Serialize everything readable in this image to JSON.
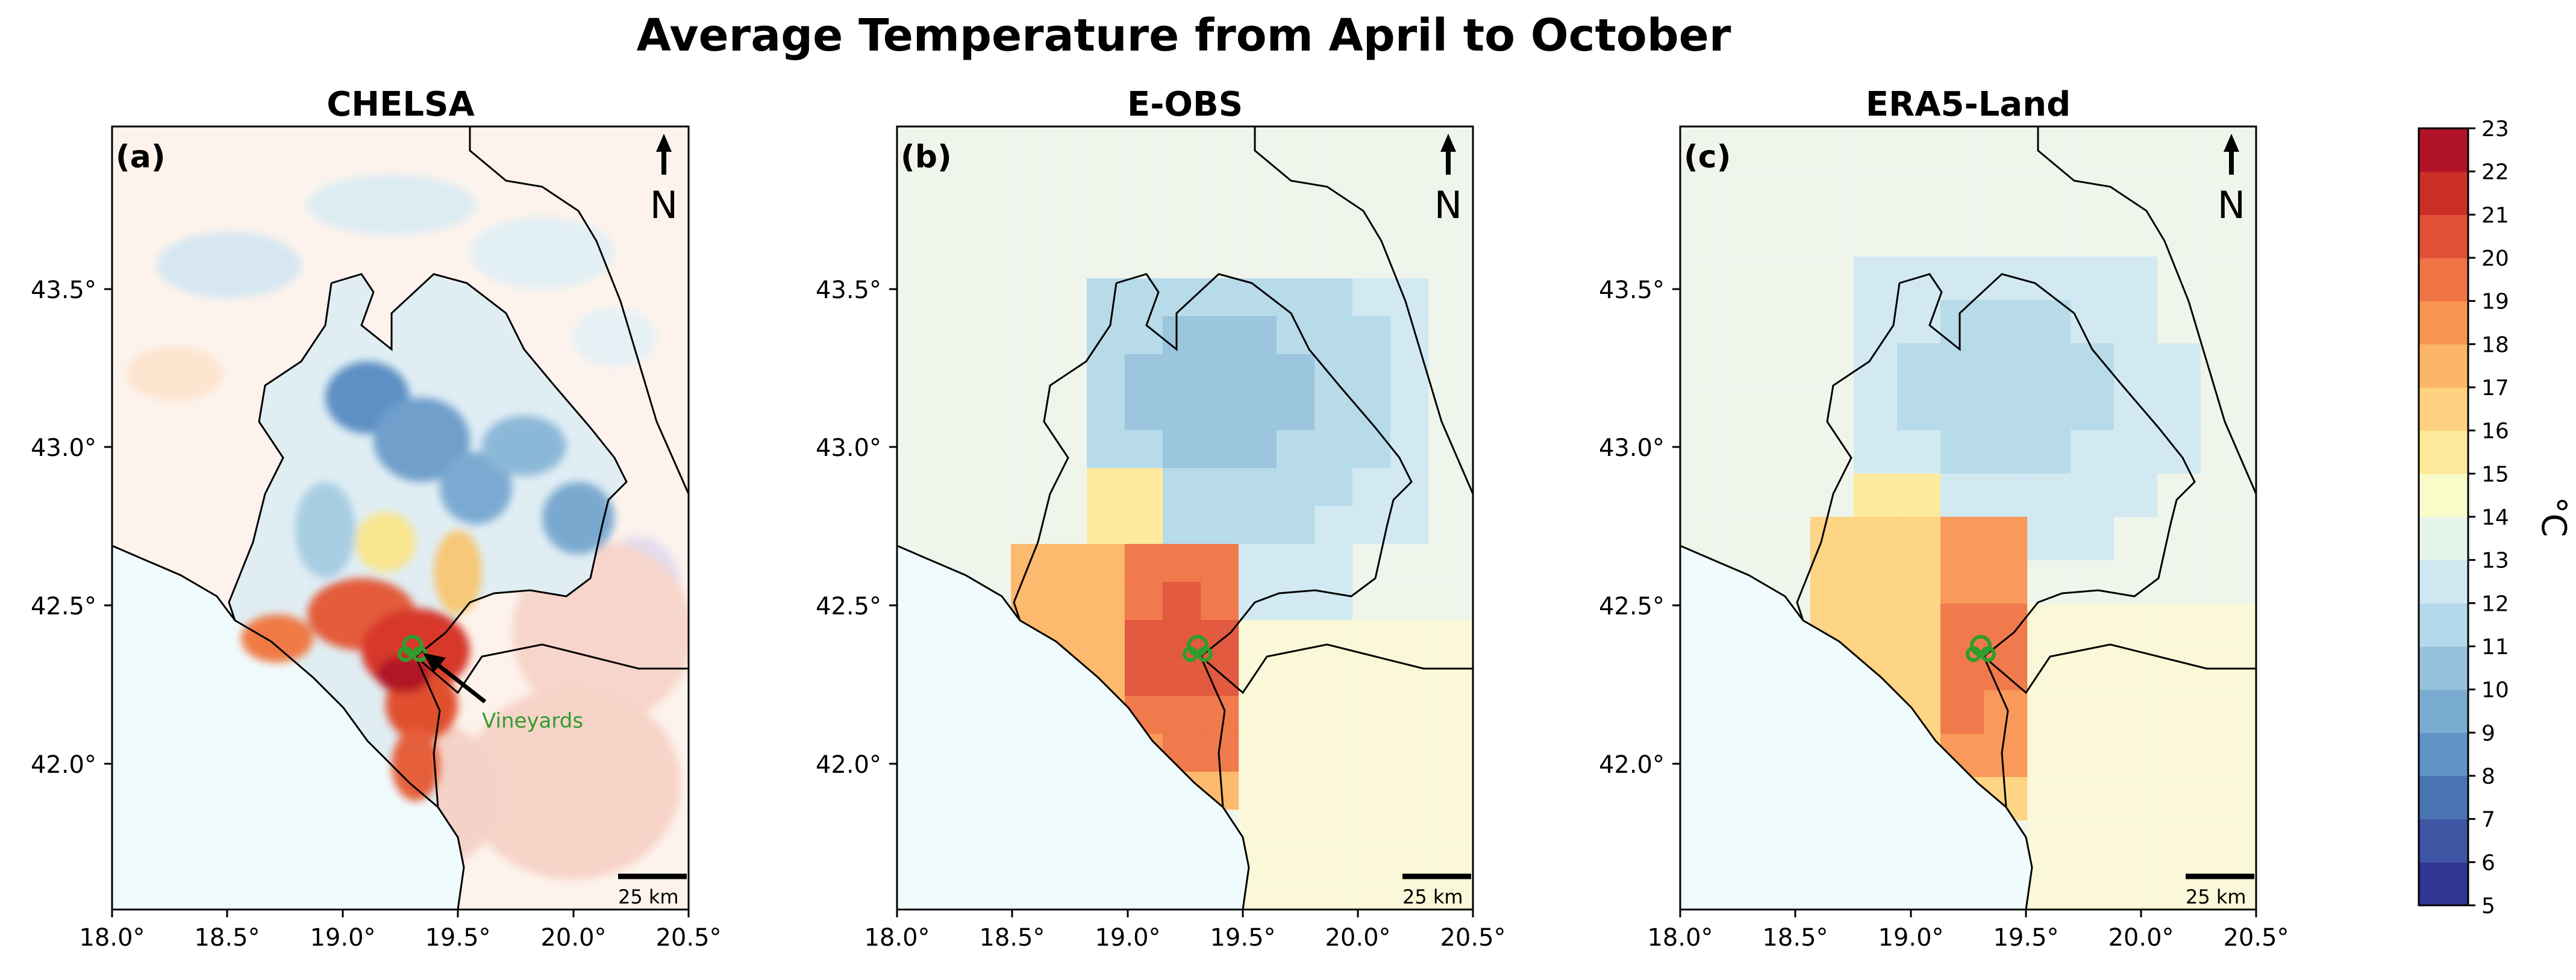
{
  "title": "Average Temperature from April to October",
  "lon_ticks": [
    "18.0°",
    "18.5°",
    "19.0°",
    "19.5°",
    "20.0°",
    "20.5°"
  ],
  "lat_ticks": [
    "43.5°",
    "43.0°",
    "42.5°",
    "42.0°"
  ],
  "north_label": "N",
  "scale_bar_label": "25 km",
  "annotation": "Vineyards",
  "panels": [
    {
      "id": "a",
      "label": "(a)",
      "title": "CHELSA"
    },
    {
      "id": "b",
      "label": "(b)",
      "title": "E-OBS"
    },
    {
      "id": "c",
      "label": "(c)",
      "title": "ERA5-Land"
    }
  ],
  "colorbar": {
    "unit": "°C",
    "min": 5,
    "max": 23,
    "tick_labels": [
      "5",
      "6",
      "7",
      "8",
      "9",
      "10",
      "11",
      "12",
      "13",
      "14",
      "15",
      "16",
      "17",
      "18",
      "19",
      "20",
      "21",
      "22",
      "23"
    ],
    "colors": [
      "#313695",
      "#3f56a5",
      "#4a74b4",
      "#6193c6",
      "#7aacd1",
      "#97c2dd",
      "#b4d9ea",
      "#d0e8f2",
      "#e6f5ec",
      "#f8fcc8",
      "#fee99b",
      "#fed280",
      "#fdb567",
      "#f99553",
      "#f07345",
      "#e05136",
      "#cd2f26",
      "#b11427"
    ]
  },
  "colors": {
    "vineyard_marker": "#2e9d2e",
    "sea": "#f0fbfd",
    "border_line": "#000000"
  }
}
